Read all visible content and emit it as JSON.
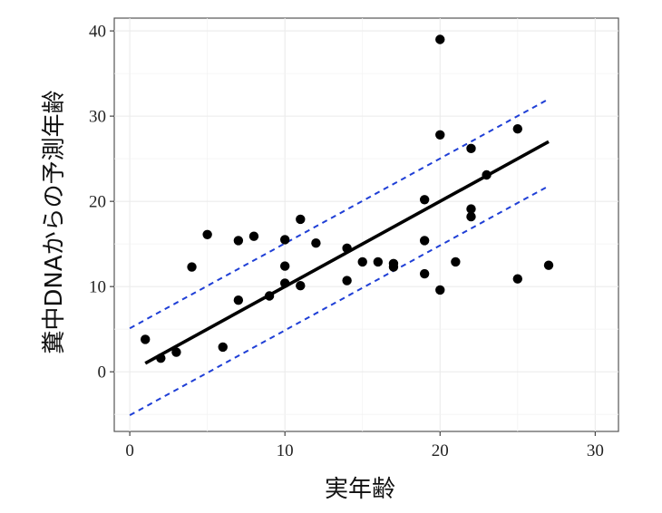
{
  "chart_data": {
    "type": "scatter",
    "title": "",
    "xlabel": "実年齢",
    "ylabel": "糞中DNAからの予測年齢",
    "xlim": [
      -1,
      31.5
    ],
    "ylim": [
      -7,
      41.5
    ],
    "xticks": [
      0,
      10,
      20,
      30
    ],
    "yticks": [
      0,
      10,
      20,
      30,
      40
    ],
    "grid": true,
    "legend": "none",
    "points": [
      {
        "x": 1,
        "y": 3.8
      },
      {
        "x": 2,
        "y": 1.6
      },
      {
        "x": 3,
        "y": 2.3
      },
      {
        "x": 4,
        "y": 12.3
      },
      {
        "x": 5,
        "y": 16.1
      },
      {
        "x": 6,
        "y": 2.9
      },
      {
        "x": 7,
        "y": 15.4
      },
      {
        "x": 7,
        "y": 8.4
      },
      {
        "x": 8,
        "y": 15.9
      },
      {
        "x": 9,
        "y": 8.9
      },
      {
        "x": 10,
        "y": 15.5
      },
      {
        "x": 10,
        "y": 12.4
      },
      {
        "x": 10,
        "y": 10.4
      },
      {
        "x": 11,
        "y": 17.9
      },
      {
        "x": 11,
        "y": 10.1
      },
      {
        "x": 12,
        "y": 15.1
      },
      {
        "x": 14,
        "y": 14.5
      },
      {
        "x": 14,
        "y": 10.7
      },
      {
        "x": 15,
        "y": 12.9
      },
      {
        "x": 16,
        "y": 12.9
      },
      {
        "x": 17,
        "y": 12.7
      },
      {
        "x": 17,
        "y": 12.3
      },
      {
        "x": 19,
        "y": 20.2
      },
      {
        "x": 19,
        "y": 15.4
      },
      {
        "x": 19,
        "y": 11.5
      },
      {
        "x": 20,
        "y": 39.0
      },
      {
        "x": 20,
        "y": 27.8
      },
      {
        "x": 20,
        "y": 9.6
      },
      {
        "x": 21,
        "y": 12.9
      },
      {
        "x": 22,
        "y": 26.2
      },
      {
        "x": 22,
        "y": 19.1
      },
      {
        "x": 22,
        "y": 18.2
      },
      {
        "x": 23,
        "y": 23.1
      },
      {
        "x": 25,
        "y": 28.5
      },
      {
        "x": 25,
        "y": 10.9
      },
      {
        "x": 27,
        "y": 12.5
      }
    ],
    "fit_line": {
      "x": [
        1,
        27
      ],
      "y": [
        1.0,
        27.0
      ],
      "color": "#000000"
    },
    "band_upper": {
      "x": [
        0,
        27
      ],
      "y": [
        5.1,
        32.0
      ],
      "color": "#1f3fd6"
    },
    "band_lower": {
      "x": [
        0,
        27
      ],
      "y": [
        -5.1,
        21.8
      ],
      "color": "#1f3fd6"
    },
    "point_color": "#000000"
  }
}
